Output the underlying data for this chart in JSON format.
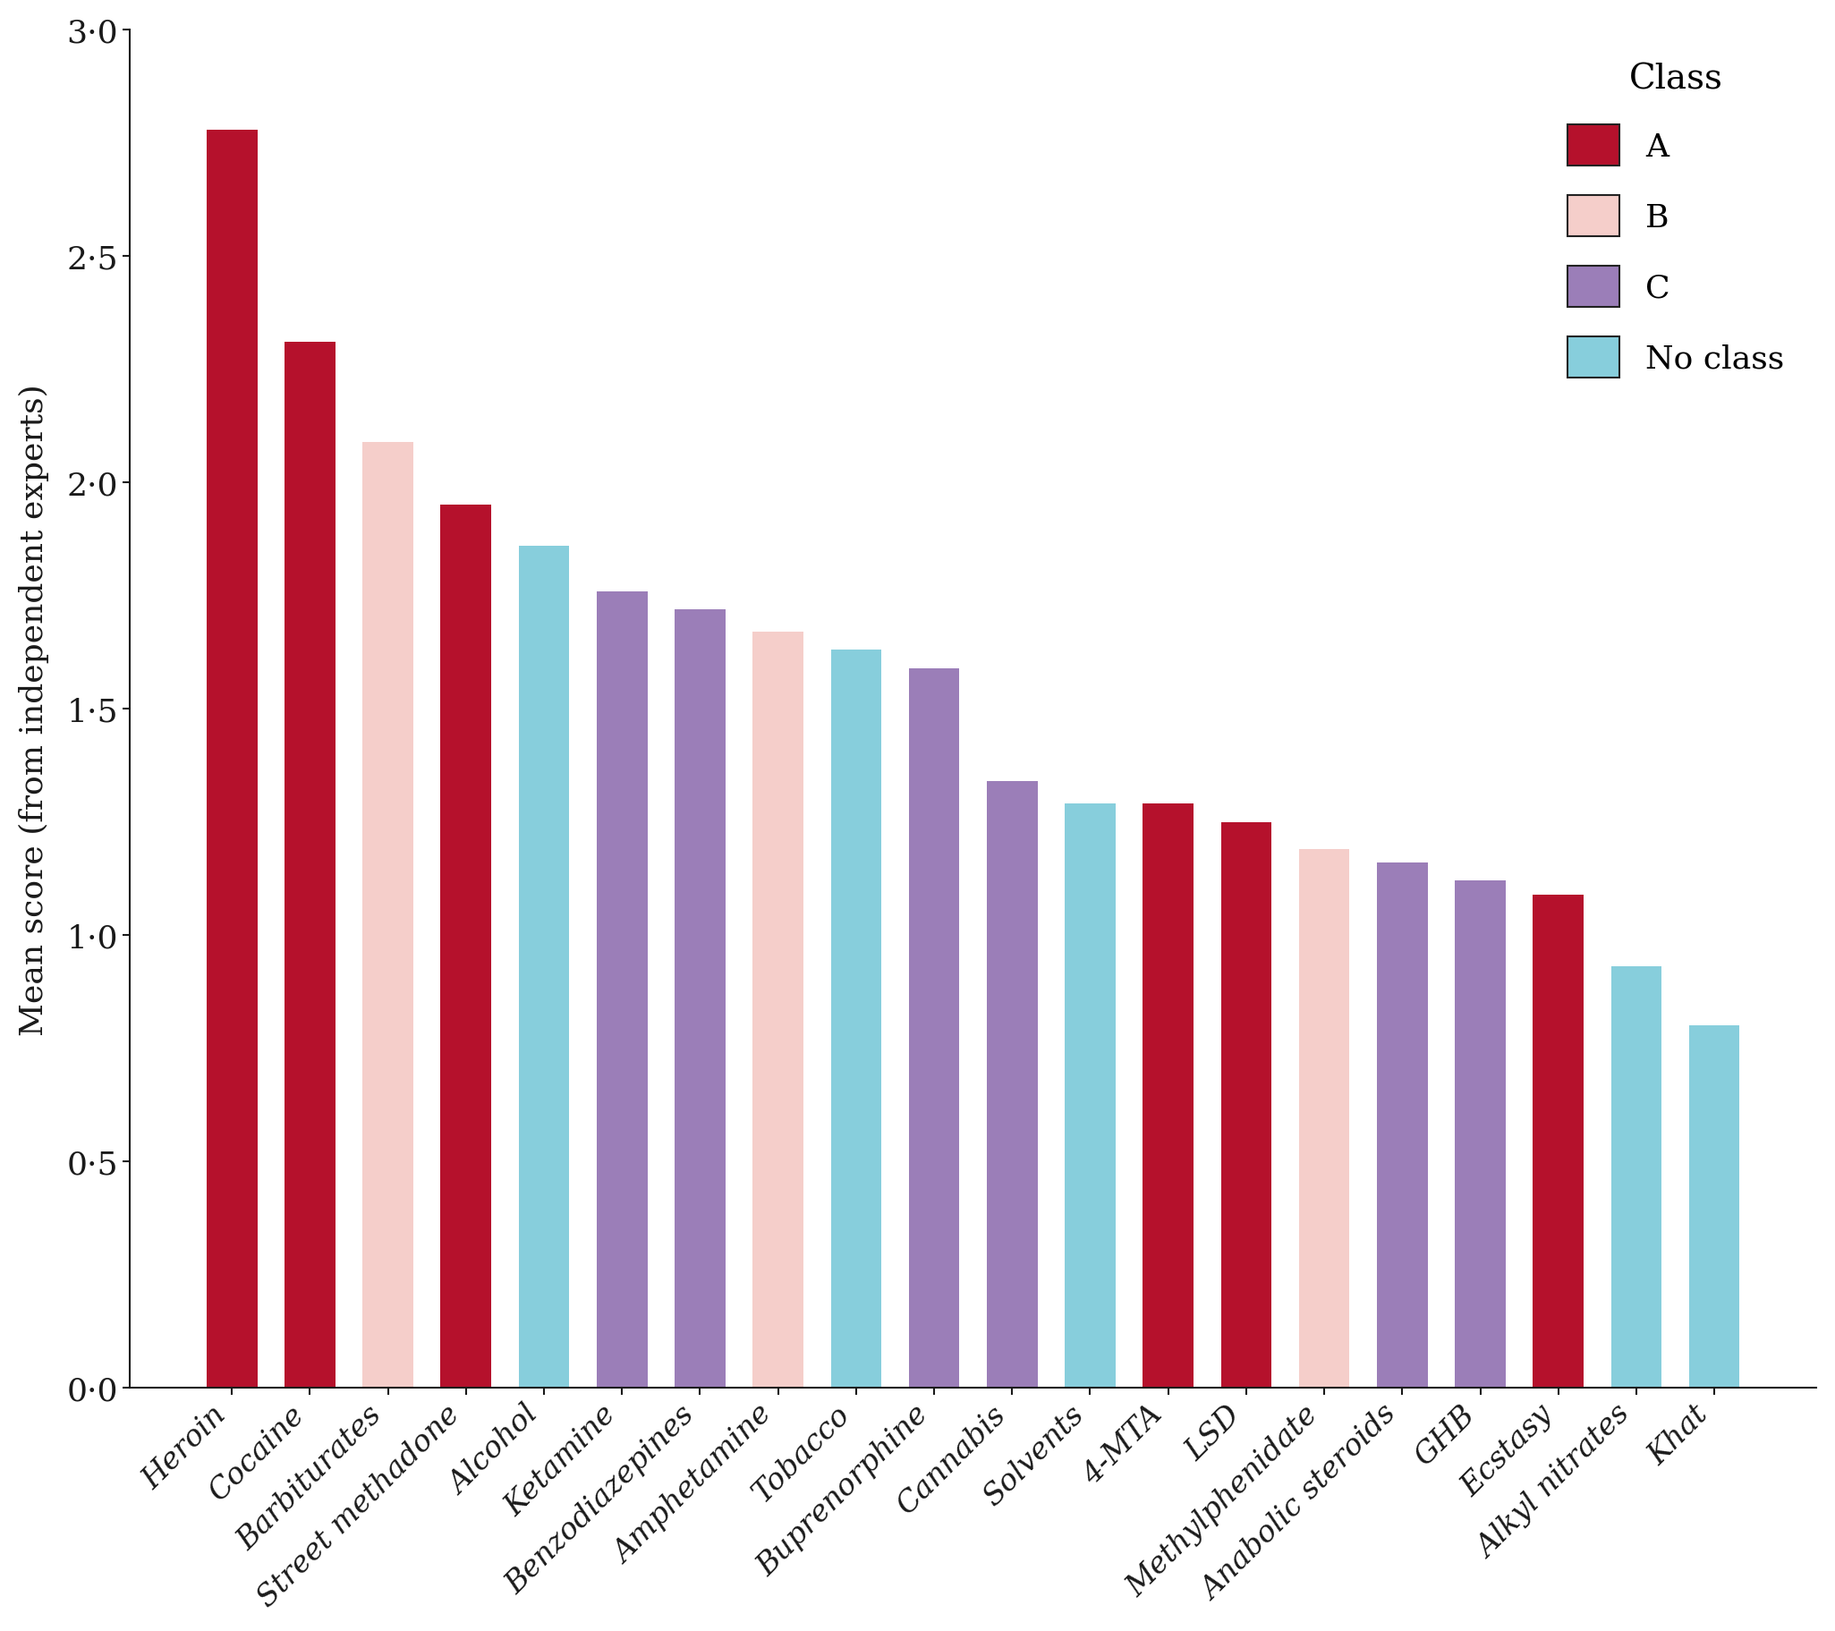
{
  "drugs": [
    "Heroin",
    "Cocaine",
    "Barbiturates",
    "Street methadone",
    "Alcohol",
    "Ketamine",
    "Benzodiazepines",
    "Amphetamine",
    "Tobacco",
    "Buprenorphine",
    "Cannabis",
    "Solvents",
    "4-MTA",
    "LSD",
    "Methylphenidate",
    "Anabolic steroids",
    "GHB",
    "Ecstasy",
    "Alkyl nitrates",
    "Khat"
  ],
  "values": [
    2.78,
    2.31,
    2.09,
    1.95,
    1.86,
    1.76,
    1.72,
    1.67,
    1.63,
    1.59,
    1.34,
    1.29,
    1.29,
    1.25,
    1.19,
    1.16,
    1.12,
    1.09,
    0.93,
    0.8
  ],
  "classes": [
    "A",
    "A",
    "B",
    "A",
    "No class",
    "C",
    "C",
    "B",
    "No class",
    "C",
    "C",
    "No class",
    "A",
    "A",
    "B",
    "C",
    "C",
    "A",
    "No class",
    "No class"
  ],
  "color_map": {
    "A": "#B5112C",
    "B": "#F5CECA",
    "C": "#9B7EB8",
    "No class": "#87CEDC"
  },
  "ylabel": "Mean score (from independent experts)",
  "ylim": [
    0,
    3.0
  ],
  "yticks": [
    0.0,
    0.5,
    1.0,
    1.5,
    2.0,
    2.5,
    3.0
  ],
  "ytick_labels": [
    "0·0",
    "0·5",
    "1·0",
    "1·5",
    "2·0",
    "2·5",
    "3·0"
  ],
  "legend_title": "Class",
  "legend_labels": [
    "A",
    "B",
    "C",
    "No class"
  ],
  "legend_edge_color": "#222222",
  "background_color": "#ffffff",
  "bar_edge_color": "none",
  "spine_color": "#1a1a1a",
  "tick_color": "#1a1a1a",
  "label_color": "#1a1a1a"
}
